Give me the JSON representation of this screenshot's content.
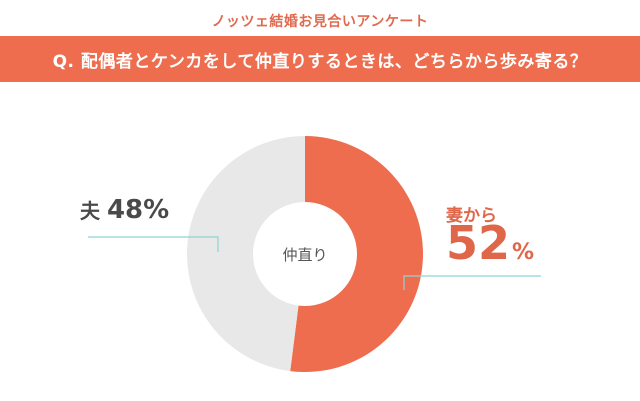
{
  "header": {
    "survey_name": "ノッツェ結婚お見合いアンケート",
    "question": "Q. 配偶者とケンカをして仲直りするときは、どちらから歩み寄る？"
  },
  "chart_data": {
    "type": "pie",
    "style": "donut",
    "title": "",
    "center_label": "仲直り",
    "slices": [
      {
        "label": "妻から",
        "value": 52,
        "value_text": "52",
        "unit": "%",
        "color": "#ed6d4e"
      },
      {
        "label": "夫",
        "value": 48,
        "value_text": "48",
        "unit": "%",
        "color": "#e8e8e8"
      }
    ],
    "leader_line_color": "#8fd3d3",
    "legend": "none"
  }
}
